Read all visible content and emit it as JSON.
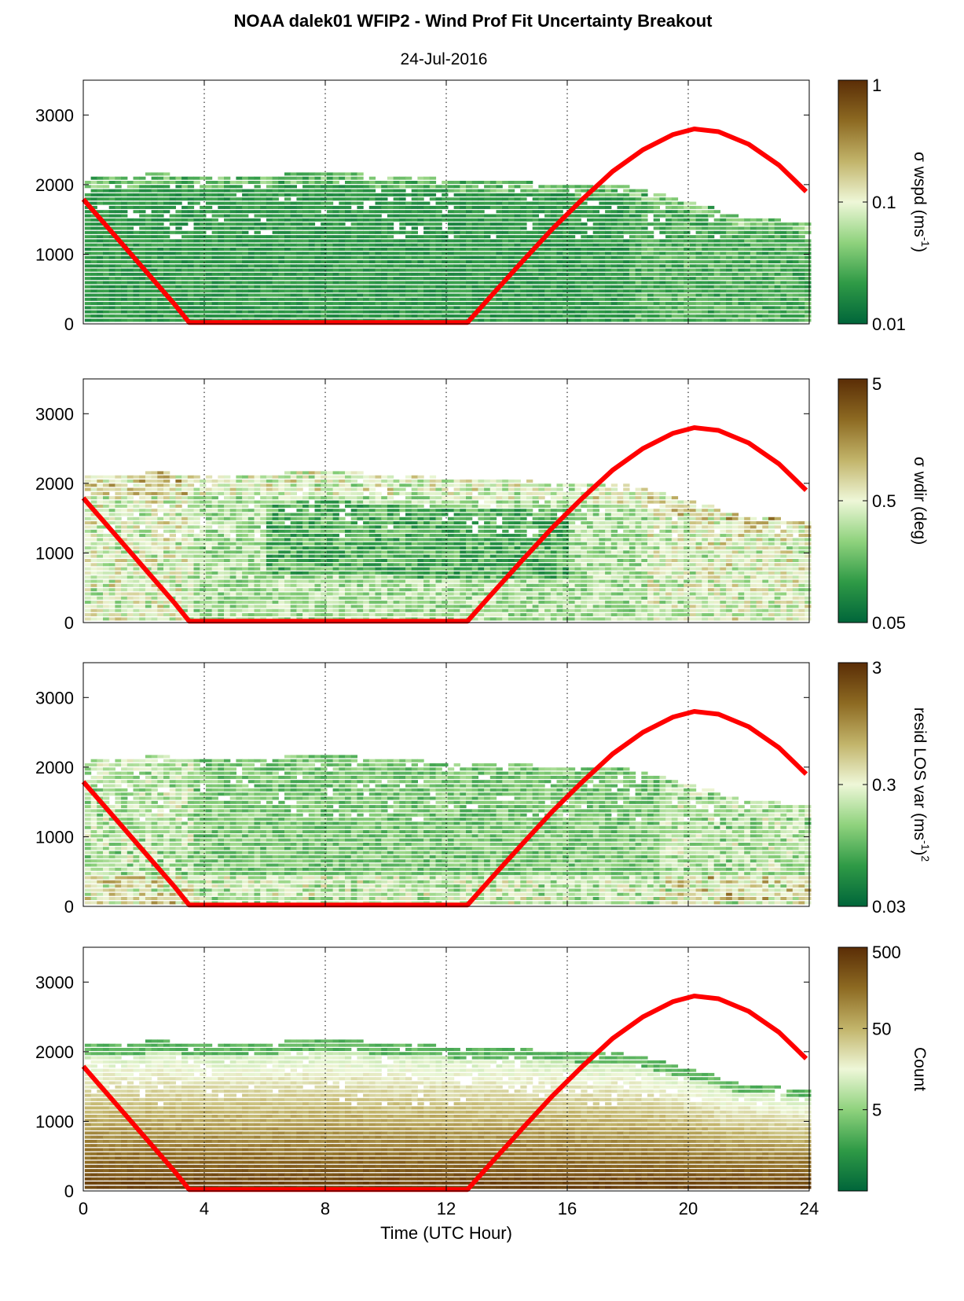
{
  "title": "NOAA dalek01 WFIP2 - Wind Prof Fit Uncertainty Breakout",
  "subtitle": "24-Jul-2016",
  "colors": {
    "colormap": [
      "#00653a",
      "#2f9a46",
      "#8fd27d",
      "#eef7d8",
      "#c2b46a",
      "#8d6a22",
      "#5a2d06"
    ],
    "sun_line": "#ff0000",
    "grid": "#000000"
  },
  "chart_data": [
    {
      "type": "heatmap",
      "name": "panel-wspd",
      "cbar_label_main": "σ wspd (ms",
      "cbar_label_sup": "-1",
      "cbar_label_tail": ")",
      "cbar_ticks": [
        "1",
        "0.1",
        "0.01"
      ],
      "cbar_range": [
        0.01,
        1
      ],
      "ylim": [
        0,
        3500
      ],
      "yticks": [
        "0",
        "1000",
        "2000",
        "3000"
      ]
    },
    {
      "type": "heatmap",
      "name": "panel-wdir",
      "cbar_label_main": "σ wdir (deg)",
      "cbar_ticks": [
        "5",
        "0.5",
        "0.05"
      ],
      "cbar_range": [
        0.05,
        5
      ],
      "ylim": [
        0,
        3500
      ],
      "yticks": [
        "0",
        "1000",
        "2000",
        "3000"
      ]
    },
    {
      "type": "heatmap",
      "name": "panel-resid",
      "cbar_label_main": "resid LOS var (ms",
      "cbar_label_sup": "-1",
      "cbar_label_tail": ")",
      "cbar_label_sup2": "2",
      "cbar_ticks": [
        "3",
        "0.3",
        "0.03"
      ],
      "cbar_range": [
        0.03,
        3
      ],
      "ylim": [
        0,
        3500
      ],
      "yticks": [
        "0",
        "1000",
        "2000",
        "3000"
      ]
    },
    {
      "type": "heatmap",
      "name": "panel-count",
      "cbar_label_main": "Count",
      "cbar_ticks": [
        "500",
        "50",
        "5"
      ],
      "cbar_range": [
        0.5,
        500
      ],
      "ylim": [
        0,
        3500
      ],
      "yticks": [
        "0",
        "1000",
        "2000",
        "3000"
      ]
    }
  ],
  "xaxis": {
    "label": "Time (UTC Hour)",
    "xlim": [
      0,
      24
    ],
    "ticks": [
      "0",
      "4",
      "8",
      "12",
      "16",
      "20",
      "24"
    ]
  },
  "sun_elevation_curve": {
    "x": [
      0,
      1,
      2,
      3,
      3.5,
      12.7,
      13.5,
      14.5,
      15.5,
      16.5,
      17.5,
      18.5,
      19.5,
      20.2,
      21,
      22,
      23,
      23.9
    ],
    "y": [
      1790,
      1290,
      790,
      290,
      20,
      20,
      410,
      890,
      1360,
      1790,
      2190,
      2500,
      2720,
      2800,
      2760,
      2580,
      2280,
      1900
    ]
  }
}
